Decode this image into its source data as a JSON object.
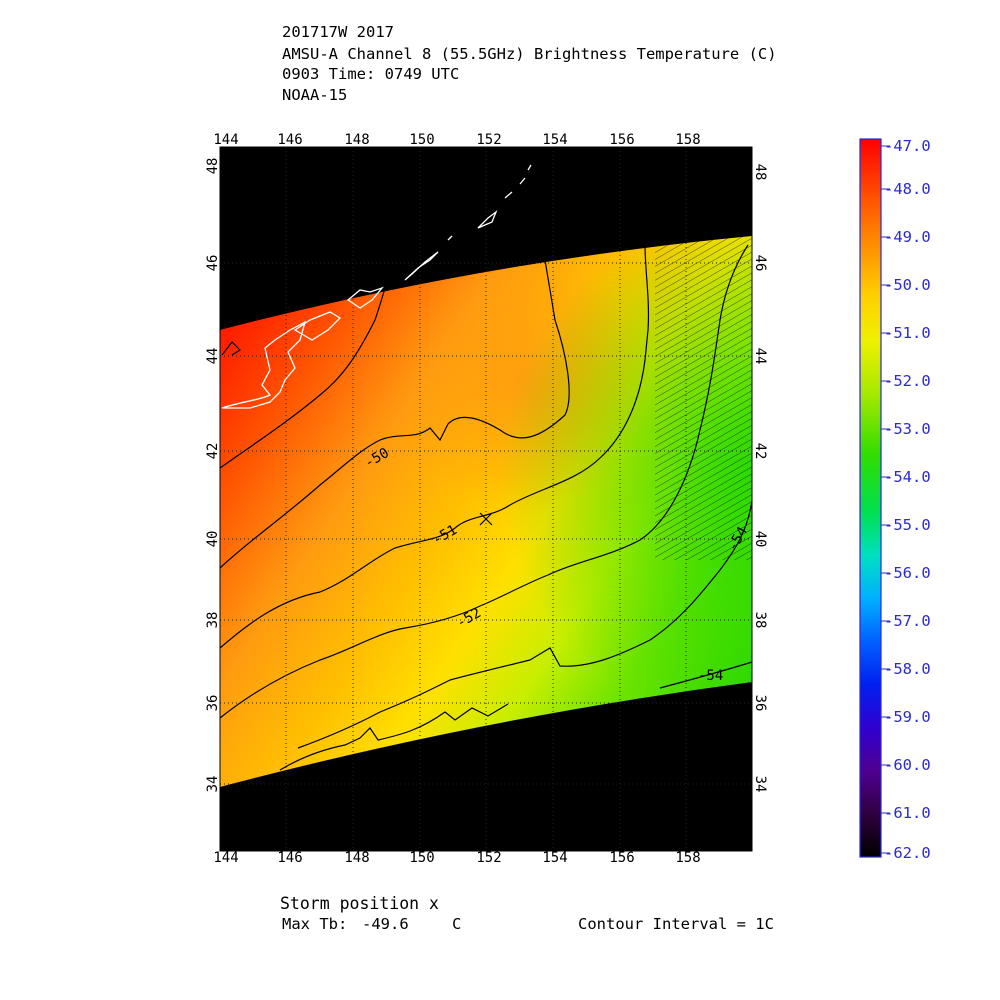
{
  "header": {
    "line1": "201717W 2017",
    "line2": "AMSU-A Channel 8 (55.5GHz) Brightness Temperature (C)",
    "line3": "0903 Time: 0749 UTC",
    "line4": "NOAA-15"
  },
  "footer": {
    "storm_position": "Storm position x",
    "max_tb_label": "Max Tb:",
    "max_tb_value": "-49.6",
    "max_tb_unit": "C",
    "contour_interval": "Contour Interval = 1C"
  },
  "map": {
    "lon_ticks": [
      "144",
      "146",
      "148",
      "150",
      "152",
      "154",
      "156",
      "158"
    ],
    "lat_ticks": [
      "34",
      "36",
      "38",
      "40",
      "42",
      "44",
      "46",
      "48"
    ],
    "lon_range": [
      144,
      160
    ],
    "lat_range": [
      32.6,
      49
    ],
    "storm_position": {
      "lon": 152,
      "lat": 40.5
    },
    "contour_labels": [
      {
        "text": "-50",
        "lon": 149.4,
        "lat": 41.8
      },
      {
        "text": "-51",
        "lon": 150.7,
        "lat": 40.3
      },
      {
        "text": "-52",
        "lon": 151.5,
        "lat": 38.3
      },
      {
        "text": "-54",
        "lon": 158.7,
        "lat": 37.0
      },
      {
        "text": "-54",
        "lon": 159.7,
        "lat": 40.3
      }
    ],
    "colors": {
      "background": "#000000",
      "coastline": "#ffffff",
      "grid": "#222222",
      "contour": "#000000"
    }
  },
  "colorbar": {
    "labels": [
      "-47.0",
      "-48.0",
      "-49.0",
      "-50.0",
      "-51.0",
      "-52.0",
      "-53.0",
      "-54.0",
      "-55.0",
      "-56.0",
      "-57.0",
      "-58.0",
      "-59.0",
      "-60.0",
      "-61.0",
      "-62.0"
    ],
    "range": [
      -62,
      -47
    ],
    "label_color": "#2a2ad0",
    "border_color": "#2a2ad0",
    "stops": [
      "#ff0000",
      "#ff6a00",
      "#ffb000",
      "#ffe000",
      "#d8f000",
      "#8ee800",
      "#33dd00",
      "#00e040",
      "#00e0b0",
      "#00c0ff",
      "#0070ff",
      "#0030ff",
      "#3000e0",
      "#400090",
      "#300040",
      "#000000"
    ]
  }
}
